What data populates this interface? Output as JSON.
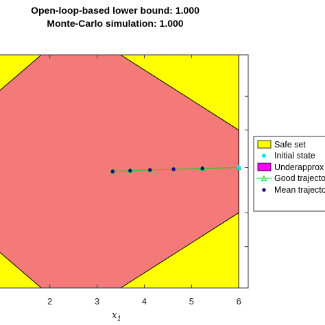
{
  "chart_data": {
    "type": "scatter",
    "title_lines": [
      "Open-loop-based lower bound: 1.000",
      "Monte-Carlo simulation: 1.000"
    ],
    "xlabel": "x",
    "xlabel_sub": "1",
    "xlim": [
      0.8,
      6.2
    ],
    "ylim": [
      -1.55,
      1.55
    ],
    "xticks": [
      2,
      3,
      4,
      5,
      6
    ],
    "grid": false,
    "legend_position": "right",
    "safe_set": {
      "name": "Safe set",
      "color": "#ffff00",
      "bounds": {
        "x": [
          0.8,
          6.0
        ],
        "y": [
          -1.55,
          1.55
        ]
      }
    },
    "underapprox": {
      "name": "Underapprox",
      "legend_color": "#ff00ff",
      "fill_color": "#f47a7a",
      "vertices": [
        [
          0.8,
          1.0
        ],
        [
          1.82,
          1.55
        ],
        [
          3.5,
          1.55
        ],
        [
          6.0,
          0.55
        ],
        [
          6.0,
          -0.55
        ],
        [
          3.5,
          -1.55
        ],
        [
          1.82,
          -1.55
        ],
        [
          0.8,
          -1.0
        ]
      ]
    },
    "initial_state": {
      "name": "Initial state",
      "color": "#00e5ff",
      "x": 6.0,
      "y": 0.05
    },
    "good_trajectory": {
      "name": "Good trajecto",
      "color": "#22cc22",
      "x": [
        6.0,
        5.23,
        4.62,
        4.12,
        3.7,
        3.33
      ],
      "y": [
        0.05,
        0.04,
        0.03,
        0.02,
        0.01,
        0.0
      ]
    },
    "mean_trajectory": {
      "name": "Mean trajecto",
      "color": "#00008b",
      "x": [
        5.23,
        4.62,
        4.12,
        3.7,
        3.33
      ],
      "y": [
        0.04,
        0.03,
        0.02,
        0.01,
        0.0
      ]
    }
  }
}
